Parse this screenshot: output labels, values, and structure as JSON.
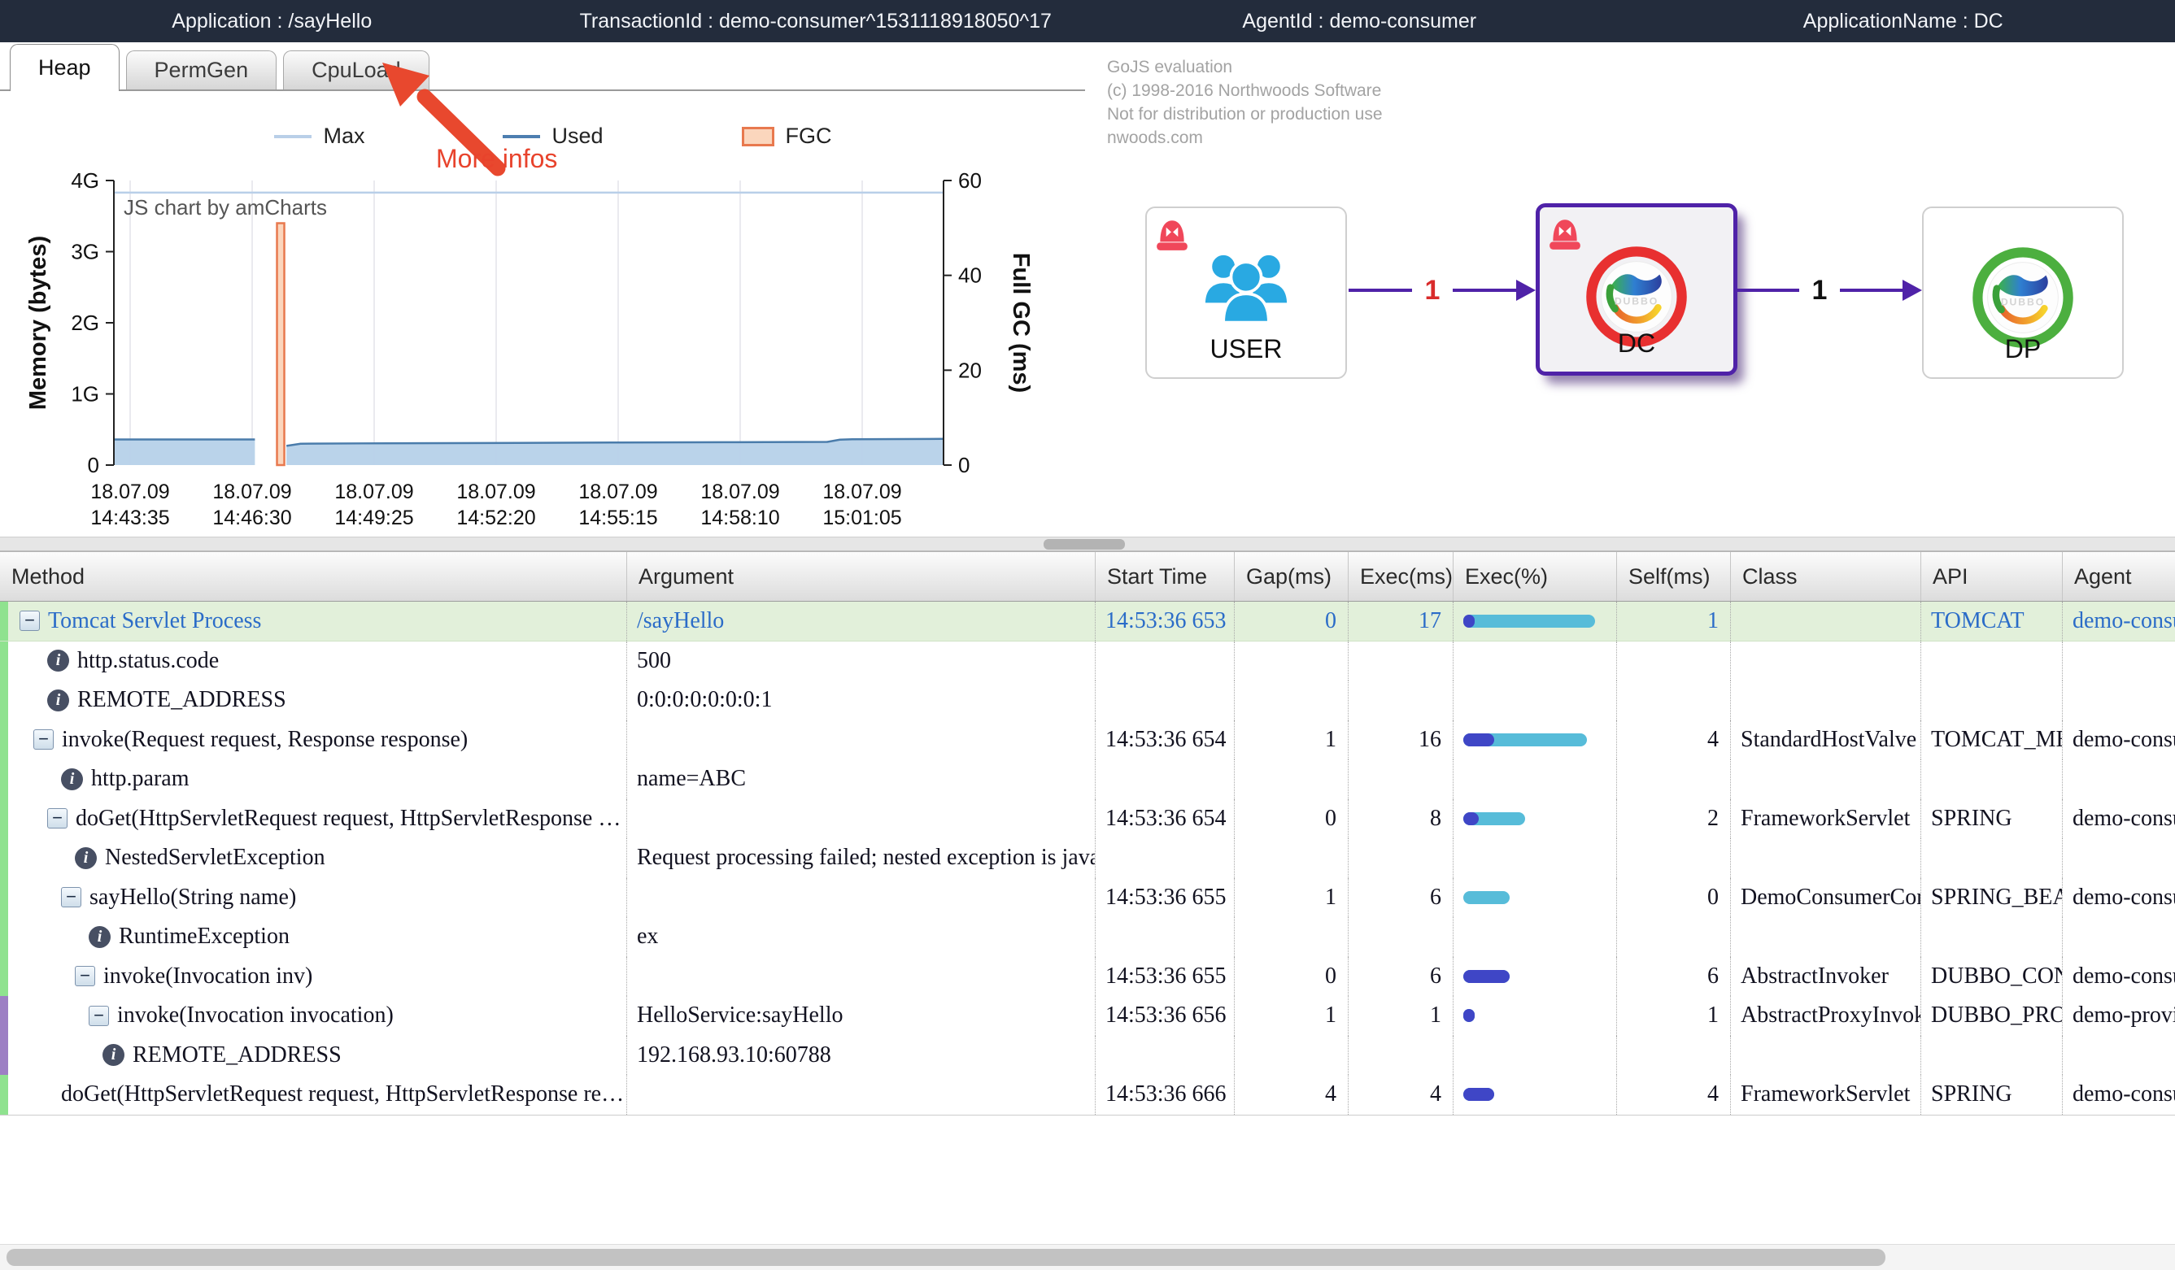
{
  "topbar": {
    "bg": "#232c3c",
    "application": "Application : /sayHello",
    "transaction": "TransactionId : demo-consumer^1531118918050^17",
    "agent": "AgentId : demo-consumer",
    "app_name": "ApplicationName : DC"
  },
  "tabs": [
    {
      "label": "Heap",
      "active": true
    },
    {
      "label": "PermGen",
      "active": false
    },
    {
      "label": "CpuLoad",
      "active": false
    }
  ],
  "annotation": {
    "text": "More infos",
    "color": "#e8432c"
  },
  "watermark": {
    "line1": "GoJS evaluation",
    "line2": "(c) 1998-2016 Northwoods Software",
    "line3": "Not for distribution or production use",
    "line4": "nwoods.com"
  },
  "chart_data": {
    "type": "area",
    "title": "JS chart by amCharts",
    "left_axis": {
      "label": "Memory (bytes)",
      "ticks": [
        "0",
        "1G",
        "2G",
        "3G",
        "4G"
      ],
      "range_g": [
        0,
        4
      ]
    },
    "right_axis": {
      "label": "Full GC (ms)",
      "ticks": [
        "0",
        "20",
        "40",
        "60"
      ],
      "range_ms": [
        0,
        60
      ]
    },
    "x_ticks": [
      [
        "18.07.09",
        "14:43:35"
      ],
      [
        "18.07.09",
        "14:46:30"
      ],
      [
        "18.07.09",
        "14:49:25"
      ],
      [
        "18.07.09",
        "14:52:20"
      ],
      [
        "18.07.09",
        "14:55:15"
      ],
      [
        "18.07.09",
        "14:58:10"
      ],
      [
        "18.07.09",
        "15:01:05"
      ]
    ],
    "legend": [
      {
        "name": "Max",
        "swatch": "line",
        "color": "#b9cfe8"
      },
      {
        "name": "Used",
        "swatch": "line",
        "color": "#4d7eb0"
      },
      {
        "name": "FGC",
        "swatch": "box",
        "color": "#e8794e",
        "fill": "#fbd6bd"
      }
    ],
    "series": {
      "max_line_g": 3.83,
      "used_area": {
        "color": "#4a7cab",
        "fill": "#b6d1e9",
        "segments_fraction_g": [
          [
            [
              0,
              0.36
            ],
            [
              0.17,
              0.36
            ]
          ],
          [
            [
              0.208,
              0.27
            ],
            [
              0.225,
              0.3
            ],
            [
              0.3,
              0.305
            ],
            [
              0.45,
              0.31
            ],
            [
              0.6,
              0.317
            ],
            [
              0.75,
              0.322
            ],
            [
              0.86,
              0.326
            ],
            [
              0.875,
              0.357
            ],
            [
              0.89,
              0.363
            ],
            [
              1,
              0.368
            ]
          ]
        ]
      },
      "fgc_bar": {
        "x_fraction": 0.201,
        "ms": 51,
        "color": "#e8794e",
        "fill": "#fbd6bd"
      }
    },
    "grid_color": "#e4e4ea"
  },
  "diagram": {
    "edge_color": "#4f22a8",
    "nodes": [
      {
        "id": "USER",
        "label": "USER",
        "icon": "users-icon",
        "alarm": true,
        "selected": false,
        "logo_ring": null
      },
      {
        "id": "DC",
        "label": "DC",
        "icon": "dubbo-logo",
        "alarm": true,
        "selected": true,
        "logo_ring": "#e83030"
      },
      {
        "id": "DP",
        "label": "DP",
        "icon": "dubbo-logo",
        "alarm": false,
        "selected": false,
        "logo_ring": "#4caf3f"
      }
    ],
    "edges": [
      {
        "from": "USER",
        "to": "DC",
        "label": "1",
        "label_color": "#d92b2b"
      },
      {
        "from": "DC",
        "to": "DP",
        "label": "1",
        "label_color": "#111111"
      }
    ]
  },
  "table": {
    "columns": [
      "Method",
      "Argument",
      "Start Time",
      "Gap(ms)",
      "Exec(ms)",
      "Exec(%)",
      "Self(ms)",
      "Class",
      "API",
      "Agent"
    ],
    "exec_scale_ms": 17,
    "bar_colors": {
      "total": "#57bcd9",
      "self": "#3f46c6"
    },
    "rows": [
      {
        "method": "Tomcat Servlet Process",
        "icon": "expander",
        "depth": 0,
        "argument": "/sayHello",
        "start": "14:53:36 653",
        "gap": "0",
        "exec": "17",
        "bar": {
          "total": 17,
          "self": 1
        },
        "self": "1",
        "class": "",
        "api": "TOMCAT",
        "agent": "demo-consumer",
        "selected": true,
        "stripe": "green"
      },
      {
        "method": "http.status.code",
        "icon": "info",
        "depth": 2,
        "argument": "500",
        "start": "",
        "gap": "",
        "exec": "",
        "bar": null,
        "self": "",
        "class": "",
        "api": "",
        "agent": "",
        "selected": false,
        "stripe": "green"
      },
      {
        "method": "REMOTE_ADDRESS",
        "icon": "info",
        "depth": 2,
        "argument": "0:0:0:0:0:0:0:1",
        "start": "",
        "gap": "",
        "exec": "",
        "bar": null,
        "self": "",
        "class": "",
        "api": "",
        "agent": "",
        "selected": false,
        "stripe": "green"
      },
      {
        "method": "invoke(Request request, Response response)",
        "icon": "expander",
        "depth": 1,
        "argument": "",
        "start": "14:53:36 654",
        "gap": "1",
        "exec": "16",
        "bar": {
          "total": 16,
          "self": 4
        },
        "self": "4",
        "class": "StandardHostValve",
        "api": "TOMCAT_ME…",
        "agent": "demo-consumer",
        "selected": false,
        "stripe": "green"
      },
      {
        "method": "http.param",
        "icon": "info",
        "depth": 3,
        "argument": "name=ABC",
        "start": "",
        "gap": "",
        "exec": "",
        "bar": null,
        "self": "",
        "class": "",
        "api": "",
        "agent": "",
        "selected": false,
        "stripe": "green"
      },
      {
        "method": "doGet(HttpServletRequest request, HttpServletResponse response)",
        "icon": "expander",
        "depth": 2,
        "argument": "",
        "start": "14:53:36 654",
        "gap": "0",
        "exec": "8",
        "bar": {
          "total": 8,
          "self": 2
        },
        "self": "2",
        "class": "FrameworkServlet",
        "api": "SPRING",
        "agent": "demo-consumer",
        "selected": false,
        "stripe": "green"
      },
      {
        "method": "NestedServletException",
        "icon": "info",
        "depth": 4,
        "argument": "Request processing failed; nested exception is java.lang.RuntimeE",
        "start": "",
        "gap": "",
        "exec": "",
        "bar": null,
        "self": "",
        "class": "",
        "api": "",
        "agent": "",
        "selected": false,
        "stripe": "green"
      },
      {
        "method": "sayHello(String name)",
        "icon": "expander",
        "depth": 3,
        "argument": "",
        "start": "14:53:36 655",
        "gap": "1",
        "exec": "6",
        "bar": {
          "total": 6,
          "self": 0
        },
        "self": "0",
        "class": "DemoConsumerContr…",
        "api": "SPRING_BEAN",
        "agent": "demo-consumer",
        "selected": false,
        "stripe": "green"
      },
      {
        "method": "RuntimeException",
        "icon": "info",
        "depth": 5,
        "argument": "ex",
        "start": "",
        "gap": "",
        "exec": "",
        "bar": null,
        "self": "",
        "class": "",
        "api": "",
        "agent": "",
        "selected": false,
        "stripe": "green"
      },
      {
        "method": "invoke(Invocation inv)",
        "icon": "expander",
        "depth": 4,
        "argument": "",
        "start": "14:53:36 655",
        "gap": "0",
        "exec": "6",
        "bar": {
          "total": 6,
          "self": 6
        },
        "self": "6",
        "class": "AbstractInvoker",
        "api": "DUBBO_CON…",
        "agent": "demo-consumer",
        "selected": false,
        "stripe": "green"
      },
      {
        "method": "invoke(Invocation invocation)",
        "icon": "expander",
        "depth": 5,
        "argument": "HelloService:sayHello",
        "start": "14:53:36 656",
        "gap": "1",
        "exec": "1",
        "bar": {
          "total": 1,
          "self": 1
        },
        "self": "1",
        "class": "AbstractProxyInvoker",
        "api": "DUBBO_PRO…",
        "agent": "demo-provider",
        "selected": false,
        "stripe": "purple"
      },
      {
        "method": "REMOTE_ADDRESS",
        "icon": "info",
        "depth": 6,
        "argument": "192.168.93.10:60788",
        "start": "",
        "gap": "",
        "exec": "",
        "bar": null,
        "self": "",
        "class": "",
        "api": "",
        "agent": "",
        "selected": false,
        "stripe": "purple"
      },
      {
        "method": "doGet(HttpServletRequest request, HttpServletResponse response)",
        "icon": null,
        "depth": 3,
        "argument": "",
        "start": "14:53:36 666",
        "gap": "4",
        "exec": "4",
        "bar": {
          "total": 4,
          "self": 4
        },
        "self": "4",
        "class": "FrameworkServlet",
        "api": "SPRING",
        "agent": "demo-consumer",
        "selected": false,
        "stripe": "green"
      }
    ]
  }
}
